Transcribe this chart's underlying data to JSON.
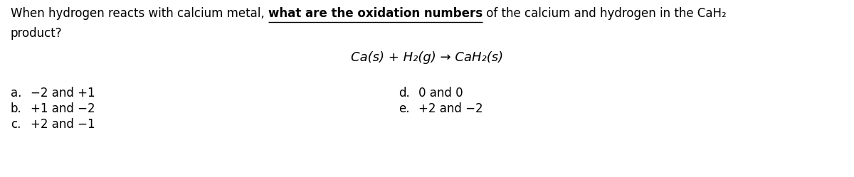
{
  "background_color": "#ffffff",
  "fig_width": 12.0,
  "fig_height": 2.49,
  "dpi": 100,
  "question_prefix": "When hydrogen reacts with calcium metal, ",
  "question_bold_underline": "what are the oxidation numbers",
  "question_suffix": " of the calcium and hydrogen in the CaH₂",
  "question_line2": "product?",
  "equation": "Ca(s) + H₂(g) → CaH₂(s)",
  "options_left": [
    {
      "label": "a.",
      "text": "−2 and +1"
    },
    {
      "label": "b.",
      "text": "+1 and −2"
    },
    {
      "label": "c.",
      "text": "+2 and −1"
    }
  ],
  "options_right": [
    {
      "label": "d.",
      "text": "0 and 0"
    },
    {
      "label": "e.",
      "text": "+2 and −2"
    }
  ],
  "font_size_question": 12,
  "font_size_equation": 13,
  "font_size_options": 12,
  "text_color": "#000000"
}
